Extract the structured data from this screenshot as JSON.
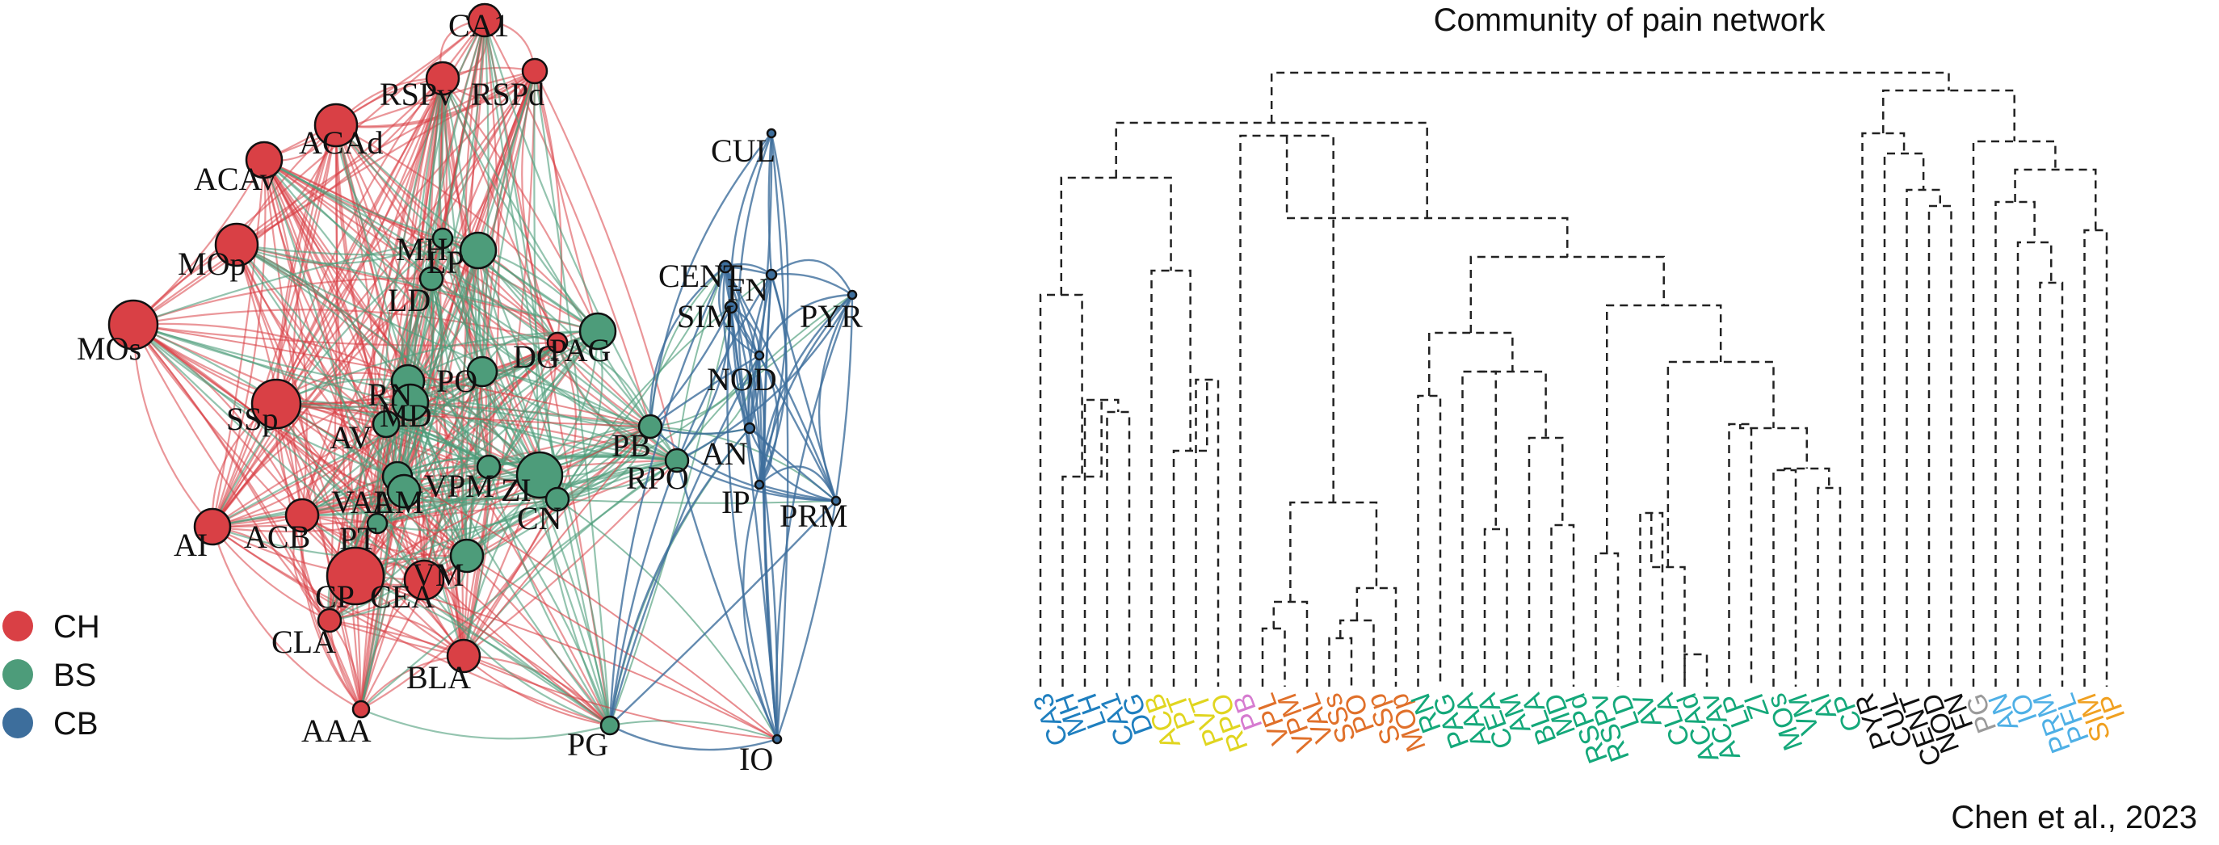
{
  "dendrogram": {
    "title": "Community of pain network",
    "citation": "Chen et al., 2023",
    "leaves": [
      {
        "label": "CA3",
        "color": "#1f7fbf"
      },
      {
        "label": "MH",
        "color": "#1f7fbf"
      },
      {
        "label": "LH",
        "color": "#1f7fbf"
      },
      {
        "label": "CA1",
        "color": "#1f7fbf"
      },
      {
        "label": "DG",
        "color": "#1f7fbf"
      },
      {
        "label": "ACB",
        "color": "#e0d51f"
      },
      {
        "label": "PT",
        "color": "#e0d51f"
      },
      {
        "label": "PVT",
        "color": "#e0d51f"
      },
      {
        "label": "RPO",
        "color": "#e0d51f"
      },
      {
        "label": "PB",
        "color": "#d67bd0"
      },
      {
        "label": "VPL",
        "color": "#e0702a"
      },
      {
        "label": "VPM",
        "color": "#e0702a"
      },
      {
        "label": "VAL",
        "color": "#e0702a"
      },
      {
        "label": "SSs",
        "color": "#e0702a"
      },
      {
        "label": "PO",
        "color": "#e0702a"
      },
      {
        "label": "SSp",
        "color": "#e0702a"
      },
      {
        "label": "MOp",
        "color": "#e0702a"
      },
      {
        "label": "RN",
        "color": "#14a87a"
      },
      {
        "label": "PAG",
        "color": "#14a87a"
      },
      {
        "label": "AAA",
        "color": "#14a87a"
      },
      {
        "label": "CEA",
        "color": "#14a87a"
      },
      {
        "label": "AM",
        "color": "#14a87a"
      },
      {
        "label": "BLA",
        "color": "#14a87a"
      },
      {
        "label": "MD",
        "color": "#14a87a"
      },
      {
        "label": "RSPd",
        "color": "#14a87a"
      },
      {
        "label": "RSPv",
        "color": "#14a87a"
      },
      {
        "label": "LD",
        "color": "#14a87a"
      },
      {
        "label": "AV",
        "color": "#14a87a"
      },
      {
        "label": "CLA",
        "color": "#14a87a"
      },
      {
        "label": "ACAd",
        "color": "#14a87a"
      },
      {
        "label": "ACAv",
        "color": "#14a87a"
      },
      {
        "label": "LP",
        "color": "#14a87a"
      },
      {
        "label": "ZI",
        "color": "#14a87a"
      },
      {
        "label": "MOs",
        "color": "#14a87a"
      },
      {
        "label": "VM",
        "color": "#14a87a"
      },
      {
        "label": "AI",
        "color": "#14a87a"
      },
      {
        "label": "CP",
        "color": "#14a87a"
      },
      {
        "label": "PYR",
        "color": "#111111"
      },
      {
        "label": "CUL",
        "color": "#111111"
      },
      {
        "label": "CENT",
        "color": "#111111"
      },
      {
        "label": "NOD",
        "color": "#111111"
      },
      {
        "label": "FN",
        "color": "#111111"
      },
      {
        "label": "PG",
        "color": "#9a9a9a"
      },
      {
        "label": "AN",
        "color": "#4fb0e6"
      },
      {
        "label": "IO",
        "color": "#4fb0e6"
      },
      {
        "label": "PRM",
        "color": "#4fb0e6"
      },
      {
        "label": "PFL",
        "color": "#4fb0e6"
      },
      {
        "label": "SIM",
        "color": "#f0a020"
      },
      {
        "label": "IP",
        "color": "#f0a020"
      }
    ]
  },
  "network": {
    "legend": [
      {
        "label": "CH",
        "color": "#d94045"
      },
      {
        "label": "BS",
        "color": "#4d9c7a"
      },
      {
        "label": "CB",
        "color": "#3d6e9c"
      }
    ],
    "colors": {
      "CH": "#d94045",
      "BS": "#4d9c7a",
      "CB": "#3d6e9c"
    },
    "nodes": [
      {
        "label": "CA1",
        "group": "CH"
      },
      {
        "label": "RSPv",
        "group": "CH"
      },
      {
        "label": "RSPd",
        "group": "CH"
      },
      {
        "label": "ACAd",
        "group": "CH"
      },
      {
        "label": "ACAv",
        "group": "CH"
      },
      {
        "label": "MOp",
        "group": "CH"
      },
      {
        "label": "MOs",
        "group": "CH"
      },
      {
        "label": "SSp",
        "group": "CH"
      },
      {
        "label": "AI",
        "group": "CH"
      },
      {
        "label": "ACB",
        "group": "CH"
      },
      {
        "label": "CP",
        "group": "CH"
      },
      {
        "label": "CEA",
        "group": "CH"
      },
      {
        "label": "CLA",
        "group": "CH"
      },
      {
        "label": "BLA",
        "group": "CH"
      },
      {
        "label": "AAA",
        "group": "CH"
      },
      {
        "label": "MH",
        "group": "BS"
      },
      {
        "label": "LP",
        "group": "BS"
      },
      {
        "label": "LD",
        "group": "BS"
      },
      {
        "label": "PAG",
        "group": "BS"
      },
      {
        "label": "DG",
        "group": "CH"
      },
      {
        "label": "PO",
        "group": "BS"
      },
      {
        "label": "RN",
        "group": "BS"
      },
      {
        "label": "MD",
        "group": "BS"
      },
      {
        "label": "AV",
        "group": "BS"
      },
      {
        "label": "VAL",
        "group": "BS"
      },
      {
        "label": "AM",
        "group": "BS"
      },
      {
        "label": "PT",
        "group": "BS"
      },
      {
        "label": "VPM",
        "group": "BS"
      },
      {
        "label": "ZI",
        "group": "BS"
      },
      {
        "label": "CN",
        "group": "BS"
      },
      {
        "label": "VM",
        "group": "BS"
      },
      {
        "label": "PB",
        "group": "BS"
      },
      {
        "label": "RPO",
        "group": "BS"
      },
      {
        "label": "PG",
        "group": "BS"
      },
      {
        "label": "CUL",
        "group": "CB"
      },
      {
        "label": "CENT",
        "group": "CB"
      },
      {
        "label": "FN",
        "group": "CB"
      },
      {
        "label": "SIM",
        "group": "CB"
      },
      {
        "label": "PYR",
        "group": "CB"
      },
      {
        "label": "NOD",
        "group": "CB"
      },
      {
        "label": "AN",
        "group": "CB"
      },
      {
        "label": "IP",
        "group": "CB"
      },
      {
        "label": "PRM",
        "group": "CB"
      },
      {
        "label": "IO",
        "group": "CB"
      }
    ]
  }
}
